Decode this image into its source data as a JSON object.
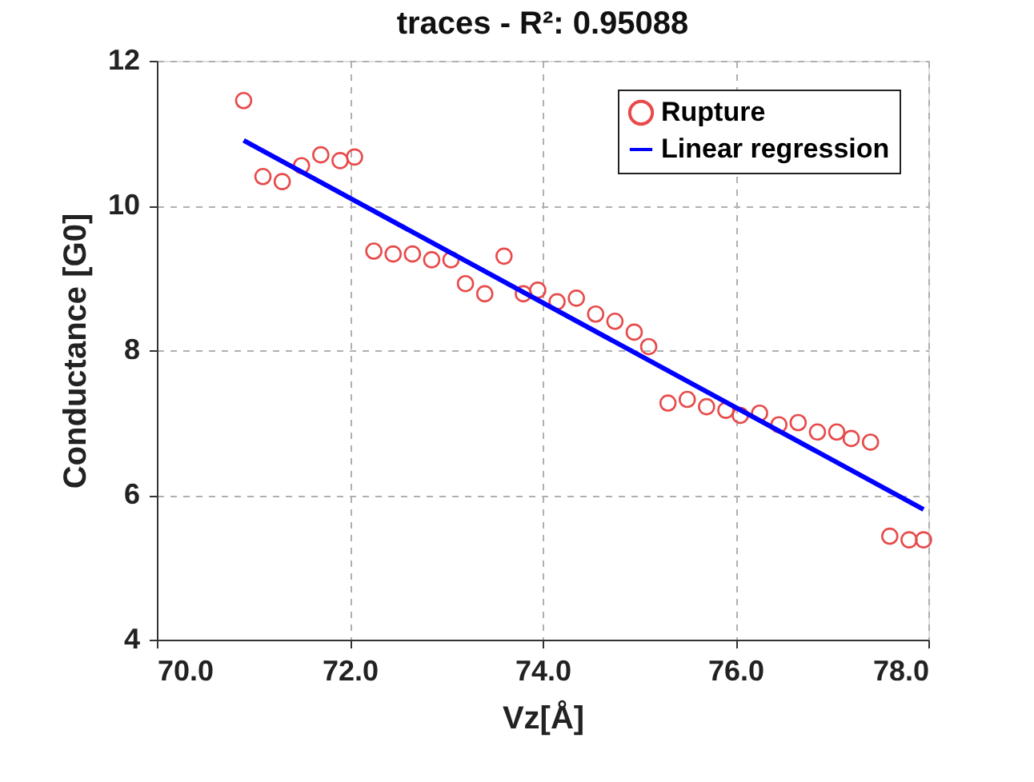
{
  "chart_data": {
    "type": "scatter",
    "title": "traces - R²: 0.95088",
    "xlabel": "Vz[Å]",
    "ylabel": "Conductance [G0]",
    "xlim": [
      70,
      78
    ],
    "xticks": [
      {
        "value": 70,
        "label": "70.0"
      },
      {
        "value": 72,
        "label": "72.0"
      },
      {
        "value": 74,
        "label": "74.0"
      },
      {
        "value": 76,
        "label": "76.0"
      },
      {
        "value": 78,
        "label": "78.0"
      }
    ],
    "ylim": [
      4,
      12
    ],
    "yticks": [
      4,
      6,
      8,
      10,
      12
    ],
    "grid": true,
    "legend": "top right",
    "series": [
      {
        "name": "Rupture",
        "marker": "circle",
        "color": "#e84a4a",
        "x": [
          70.9,
          71.1,
          71.3,
          71.5,
          71.7,
          71.9,
          72.05,
          72.25,
          72.45,
          72.65,
          72.85,
          73.05,
          73.2,
          73.4,
          73.6,
          73.8,
          73.95,
          74.15,
          74.35,
          74.55,
          74.75,
          74.95,
          75.1,
          75.3,
          75.5,
          75.7,
          75.9,
          76.05,
          76.25,
          76.45,
          76.65,
          76.85,
          77.05,
          77.2,
          77.4,
          77.6,
          77.8,
          77.95
        ],
        "values": [
          11.45,
          10.4,
          10.33,
          10.55,
          10.7,
          10.62,
          10.67,
          9.37,
          9.33,
          9.33,
          9.25,
          9.25,
          8.92,
          8.78,
          9.3,
          8.78,
          8.83,
          8.67,
          8.72,
          8.5,
          8.4,
          8.25,
          8.05,
          7.27,
          7.32,
          7.22,
          7.17,
          7.1,
          7.13,
          6.97,
          7.0,
          6.87,
          6.87,
          6.78,
          6.73,
          5.43,
          5.38,
          5.38
        ]
      },
      {
        "name": "Linear regression",
        "type": "line",
        "marker": "none",
        "color": "#0000ff",
        "line_style": "solid",
        "x": [
          70.9,
          77.95
        ],
        "values": [
          10.9,
          5.8
        ]
      }
    ]
  }
}
